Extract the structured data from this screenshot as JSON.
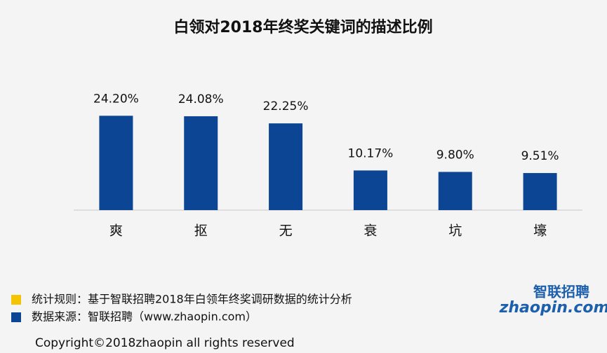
{
  "chart_data": {
    "type": "bar",
    "title": "白领对2018年终奖关键词的描述比例",
    "categories": [
      "爽",
      "抠",
      "无",
      "衰",
      "坑",
      "壕"
    ],
    "values": [
      24.2,
      24.08,
      22.25,
      10.17,
      9.8,
      9.51
    ],
    "value_labels": [
      "24.20%",
      "24.08%",
      "22.25%",
      "10.17%",
      "9.80%",
      "9.51%"
    ],
    "color": "#0c4594",
    "ylim": [
      0,
      30
    ]
  },
  "notes": [
    {
      "text": "统计规则：基于智联招聘2018年白领年终奖调研数据的统计分析",
      "color": "#f5c400"
    },
    {
      "text": "数据来源：智联招聘（www.zhaopin.com）",
      "color": "#0c4594"
    }
  ],
  "logo": {
    "name": "智联招聘",
    "site": "zhaopin.com"
  },
  "copyright": "Copyright©2018zhaopin all rights reserved"
}
